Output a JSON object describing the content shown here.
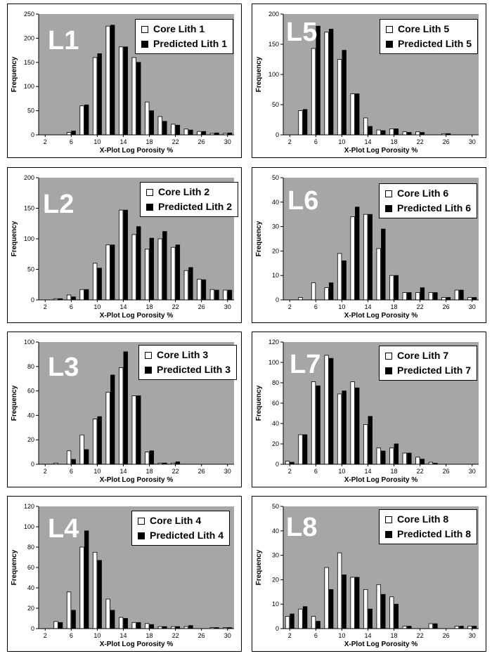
{
  "chart_data": [
    {
      "type": "bar",
      "panel_label": "L1",
      "xlabel": "X-Plot Log Porosity %",
      "ylabel": "Frequency",
      "ylim": [
        0,
        250
      ],
      "yticks": [
        0,
        50,
        100,
        150,
        200,
        250
      ],
      "xticks": [
        "2",
        "6",
        "10",
        "14",
        "18",
        "22",
        "26",
        "30"
      ],
      "categories": [
        2,
        4,
        6,
        8,
        10,
        12,
        14,
        16,
        18,
        20,
        22,
        24,
        26,
        28,
        30
      ],
      "series": [
        {
          "name": "Core Lith 1",
          "values": [
            0,
            0,
            5,
            60,
            160,
            225,
            182,
            160,
            68,
            38,
            22,
            12,
            7,
            3,
            3
          ]
        },
        {
          "name": "Predicted Lith 1",
          "values": [
            0,
            0,
            8,
            62,
            168,
            227,
            182,
            150,
            50,
            28,
            20,
            10,
            7,
            4,
            4
          ]
        }
      ]
    },
    {
      "type": "bar",
      "panel_label": "L5",
      "xlabel": "X-Plot Log Porosity %",
      "ylabel": "Frequency",
      "ylim": [
        0,
        200
      ],
      "yticks": [
        0,
        50,
        100,
        150,
        200
      ],
      "xticks": [
        "2",
        "6",
        "10",
        "14",
        "18",
        "22",
        "26",
        "30"
      ],
      "categories": [
        2,
        4,
        6,
        8,
        10,
        12,
        14,
        16,
        18,
        20,
        22,
        24,
        26,
        28,
        30
      ],
      "series": [
        {
          "name": "Core Lith 5",
          "values": [
            0,
            40,
            143,
            170,
            125,
            68,
            28,
            8,
            10,
            5,
            5,
            0,
            2,
            0,
            0
          ]
        },
        {
          "name": "Predicted Lith 5",
          "values": [
            0,
            42,
            180,
            175,
            140,
            68,
            14,
            7,
            10,
            4,
            4,
            0,
            2,
            0,
            0
          ]
        }
      ]
    },
    {
      "type": "bar",
      "panel_label": "L2",
      "xlabel": "X-Plot Log Porosity %",
      "ylabel": "Frequency",
      "ylim": [
        0,
        200
      ],
      "yticks": [
        0,
        50,
        100,
        150,
        200
      ],
      "xticks": [
        "2",
        "6",
        "10",
        "14",
        "18",
        "22",
        "26",
        "30"
      ],
      "categories": [
        2,
        4,
        6,
        8,
        10,
        12,
        14,
        16,
        18,
        20,
        22,
        24,
        26,
        28,
        30
      ],
      "series": [
        {
          "name": "Core Lith 2",
          "values": [
            0,
            2,
            8,
            17,
            60,
            90,
            147,
            107,
            83,
            100,
            86,
            48,
            34,
            17,
            16
          ]
        },
        {
          "name": "Predicted Lith 2",
          "values": [
            0,
            2,
            5,
            17,
            52,
            90,
            147,
            120,
            101,
            112,
            90,
            53,
            33,
            16,
            16
          ]
        }
      ]
    },
    {
      "type": "bar",
      "panel_label": "L6",
      "xlabel": "X-Plot Log Porosity %",
      "ylabel": "Frequency",
      "ylim": [
        0,
        50
      ],
      "yticks": [
        0,
        10,
        20,
        30,
        40,
        50
      ],
      "xticks": [
        "2",
        "6",
        "10",
        "14",
        "18",
        "22",
        "26",
        "30"
      ],
      "categories": [
        2,
        4,
        6,
        8,
        10,
        12,
        14,
        16,
        18,
        20,
        22,
        24,
        26,
        28,
        30
      ],
      "series": [
        {
          "name": "Core Lith 6",
          "values": [
            0,
            1,
            7,
            5,
            19,
            34,
            35,
            21,
            10,
            3,
            3,
            3,
            1,
            4,
            1
          ]
        },
        {
          "name": "Predicted Lith 6",
          "values": [
            0,
            0,
            0,
            7,
            16,
            38,
            35,
            29,
            10,
            3,
            5,
            3,
            1,
            4,
            1
          ]
        }
      ]
    },
    {
      "type": "bar",
      "panel_label": "L3",
      "xlabel": "X-Plot Log Porosity %",
      "ylabel": "Frequency",
      "ylim": [
        0,
        100
      ],
      "yticks": [
        0,
        20,
        40,
        60,
        80,
        100
      ],
      "xticks": [
        "2",
        "6",
        "10",
        "14",
        "18",
        "22",
        "26",
        "30"
      ],
      "categories": [
        2,
        4,
        6,
        8,
        10,
        12,
        14,
        16,
        18,
        20,
        22,
        24,
        26,
        28,
        30
      ],
      "series": [
        {
          "name": "Core Lith 3",
          "values": [
            0,
            1,
            11,
            24,
            37,
            59,
            79,
            56,
            10,
            1,
            1,
            0,
            0,
            0,
            0
          ]
        },
        {
          "name": "Predicted Lith 3",
          "values": [
            0,
            0,
            4,
            12,
            39,
            73,
            92,
            56,
            11,
            1,
            2,
            0,
            0,
            0,
            0
          ]
        }
      ]
    },
    {
      "type": "bar",
      "panel_label": "L7",
      "xlabel": "X-Plot Log Porosity %",
      "ylabel": "Frequency",
      "ylim": [
        0,
        120
      ],
      "yticks": [
        0,
        20,
        40,
        60,
        80,
        100,
        120
      ],
      "xticks": [
        "2",
        "6",
        "10",
        "14",
        "18",
        "22",
        "26",
        "30"
      ],
      "categories": [
        2,
        4,
        6,
        8,
        10,
        12,
        14,
        16,
        18,
        20,
        22,
        24,
        26,
        28,
        30
      ],
      "series": [
        {
          "name": "Core Lith 7",
          "values": [
            3,
            29,
            81,
            107,
            69,
            81,
            39,
            16,
            16,
            11,
            7,
            2,
            0,
            0,
            0
          ]
        },
        {
          "name": "Predicted Lith 7",
          "values": [
            2,
            29,
            77,
            104,
            72,
            75,
            47,
            13,
            20,
            11,
            5,
            1,
            0,
            0,
            0
          ]
        }
      ]
    },
    {
      "type": "bar",
      "panel_label": "L4",
      "xlabel": "X-Plot Log Porosity %",
      "ylabel": "Frequency",
      "ylim": [
        0,
        120
      ],
      "yticks": [
        0,
        20,
        40,
        60,
        80,
        100,
        120
      ],
      "xticks": [
        "2",
        "6",
        "10",
        "14",
        "18",
        "22",
        "26",
        "30"
      ],
      "categories": [
        2,
        4,
        6,
        8,
        10,
        12,
        14,
        16,
        18,
        20,
        22,
        24,
        26,
        28,
        30
      ],
      "series": [
        {
          "name": "Core Lith 4",
          "values": [
            0,
            7,
            36,
            80,
            75,
            29,
            11,
            6,
            5,
            2,
            2,
            2,
            0,
            1,
            1
          ]
        },
        {
          "name": "Predicted Lith 4",
          "values": [
            0,
            6,
            18,
            96,
            67,
            18,
            10,
            6,
            4,
            2,
            2,
            3,
            0,
            1,
            1
          ]
        }
      ]
    },
    {
      "type": "bar",
      "panel_label": "L8",
      "xlabel": "X-Plot Log Porosity %",
      "ylabel": "Frequency",
      "ylim": [
        0,
        50
      ],
      "yticks": [
        0,
        10,
        20,
        30,
        40,
        50
      ],
      "xticks": [
        "2",
        "6",
        "10",
        "14",
        "18",
        "22",
        "26",
        "30"
      ],
      "categories": [
        2,
        4,
        6,
        8,
        10,
        12,
        14,
        16,
        18,
        20,
        22,
        24,
        26,
        28,
        30
      ],
      "series": [
        {
          "name": "Core Lith 8",
          "values": [
            5,
            8,
            5,
            25,
            31,
            21,
            16,
            18,
            13,
            1,
            0,
            2,
            0,
            1,
            1
          ]
        },
        {
          "name": "Predicted Lith 8",
          "values": [
            6,
            9,
            3,
            16,
            22,
            21,
            8,
            14,
            10,
            1,
            0,
            2,
            0,
            1,
            1
          ]
        }
      ]
    }
  ],
  "colors": {
    "plot_bg": "#a6a6a6",
    "core_bar": "#ffffff",
    "predicted_bar": "#000000",
    "panel_label": "#ffffff"
  }
}
